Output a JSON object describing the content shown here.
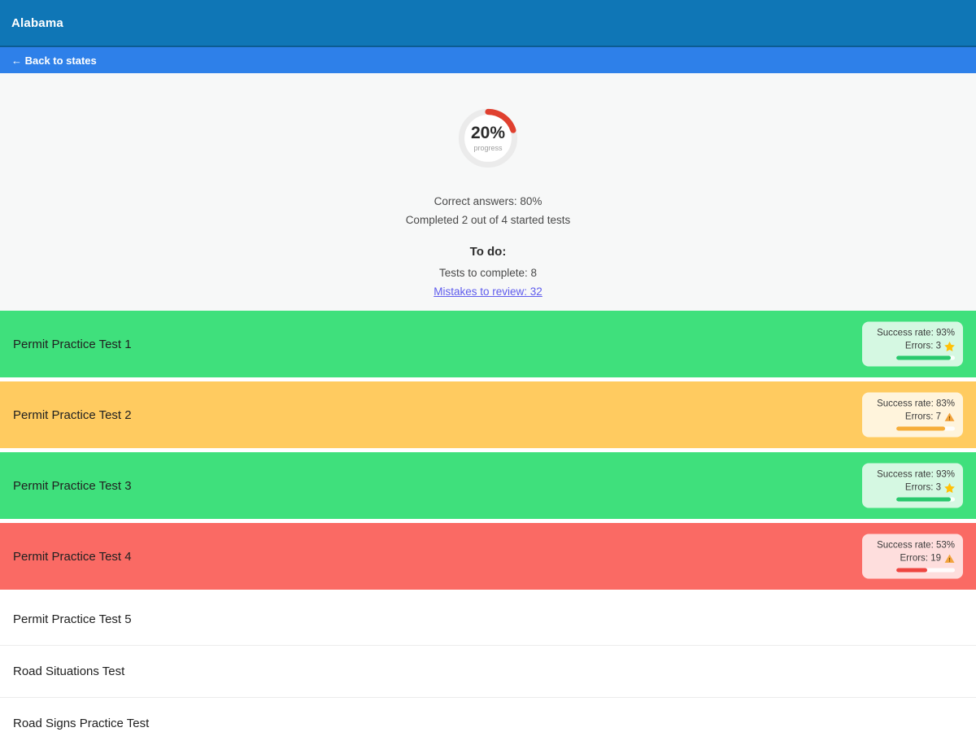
{
  "header": {
    "title": "Alabama"
  },
  "nav": {
    "back_label": "← Back to states"
  },
  "progress": {
    "percent": 20,
    "value_text": "20%",
    "caption": "progress"
  },
  "summary": {
    "correct_answers": "Correct answers: 80%",
    "completed": "Completed 2 out of 4 started tests",
    "todo_heading": "To do:",
    "tests_to_complete": "Tests to complete: 8",
    "mistakes_link": "Mistakes to review: 32"
  },
  "tests": [
    {
      "name": "Permit Practice Test 1",
      "variant": "green",
      "success_text": "Success rate: 93%",
      "errors_text": "Errors: 3",
      "icon": "star",
      "bar_percent": 93
    },
    {
      "name": "Permit Practice Test 2",
      "variant": "yellow",
      "success_text": "Success rate: 83%",
      "errors_text": "Errors: 7",
      "icon": "warning",
      "bar_percent": 83
    },
    {
      "name": "Permit Practice Test 3",
      "variant": "green",
      "success_text": "Success rate: 93%",
      "errors_text": "Errors: 3",
      "icon": "star",
      "bar_percent": 93
    },
    {
      "name": "Permit Practice Test 4",
      "variant": "red",
      "success_text": "Success rate: 53%",
      "errors_text": "Errors: 19",
      "icon": "warning",
      "bar_percent": 53
    },
    {
      "name": "Permit Practice Test 5",
      "variant": "plain"
    },
    {
      "name": "Road Situations Test",
      "variant": "plain"
    },
    {
      "name": "Road Signs Practice Test",
      "variant": "plain"
    }
  ],
  "colors": {
    "header_bg": "#0f76b6",
    "back_bar_bg": "#2e80e9",
    "row_green": "#3fe07c",
    "row_yellow": "#ffcb60",
    "row_red": "#fa6a64",
    "arc_red": "#e0402f",
    "ring_gray": "#ebebeb",
    "link": "#5f5ced",
    "star": "#ffc107",
    "warning": "#f2a33c"
  }
}
